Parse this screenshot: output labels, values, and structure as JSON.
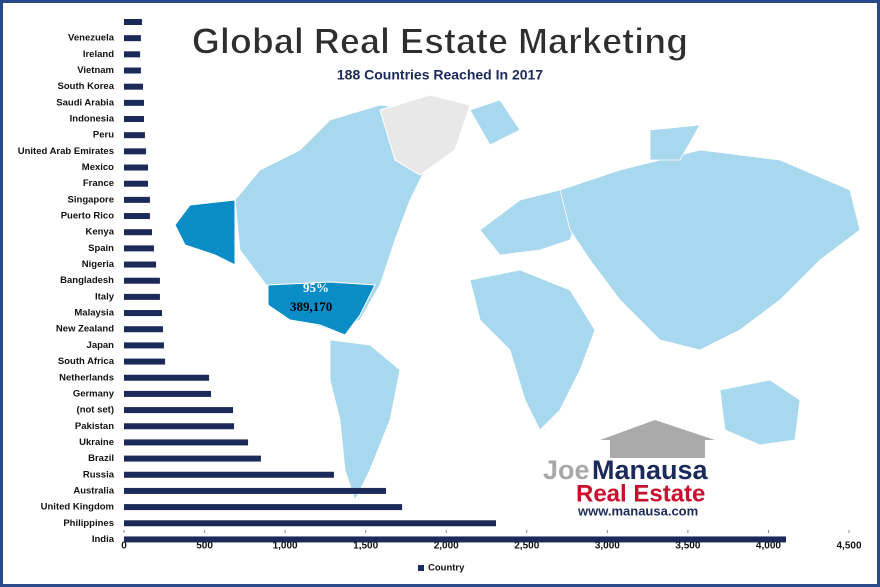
{
  "chart_data": {
    "type": "bar",
    "orientation": "horizontal",
    "title": "Global Real Estate Marketing",
    "subtitle": "188 Countries Reached In 2017",
    "categories": [
      null,
      "Venezuela",
      "Ireland",
      "Vietnam",
      "South Korea",
      "Saudi Arabia",
      "Indonesia",
      "Peru",
      "United Arab Emirates",
      "Mexico",
      "France",
      "Singapore",
      "Puerto Rico",
      "Kenya",
      "Spain",
      "Nigeria",
      "Bangladesh",
      "Italy",
      "Malaysia",
      "New Zealand",
      "Japan",
      "South Africa",
      "Netherlands",
      "Germany",
      "(not set)",
      "Pakistan",
      "Ukraine",
      "Brazil",
      "Russia",
      "Australia",
      "United Kingdom",
      "Philippines",
      "India"
    ],
    "series": [
      {
        "name": "Country",
        "color": "#1c2a5a",
        "values": [
          112,
          105,
          100,
          105,
          118,
          124,
          124,
          130,
          137,
          149,
          149,
          161,
          161,
          174,
          186,
          199,
          223,
          223,
          236,
          242,
          248,
          255,
          528,
          540,
          677,
          683,
          770,
          850,
          1303,
          1626,
          1726,
          2309,
          4109
        ]
      }
    ],
    "xlim": [
      0,
      4500
    ],
    "xticks": [
      0,
      500,
      {
        "value": 1000,
        "label": "1,000"
      },
      {
        "value": 1500,
        "label": "1,500"
      },
      {
        "value": 2000,
        "label": "2,000"
      },
      {
        "value": 2500,
        "label": "2,500"
      },
      {
        "value": 3000,
        "label": "3,000"
      },
      {
        "value": 3500,
        "label": "3,500"
      },
      {
        "value": 4000,
        "label": "4,000"
      },
      {
        "value": 4500,
        "label": "4,500"
      }
    ],
    "legend": "bottom",
    "annotations": {
      "share": "95%",
      "visits": "389,170"
    },
    "logo": {
      "first": "Joe",
      "last": "Manausa",
      "line2": "Real Estate",
      "url": "www.manausa.com"
    }
  }
}
